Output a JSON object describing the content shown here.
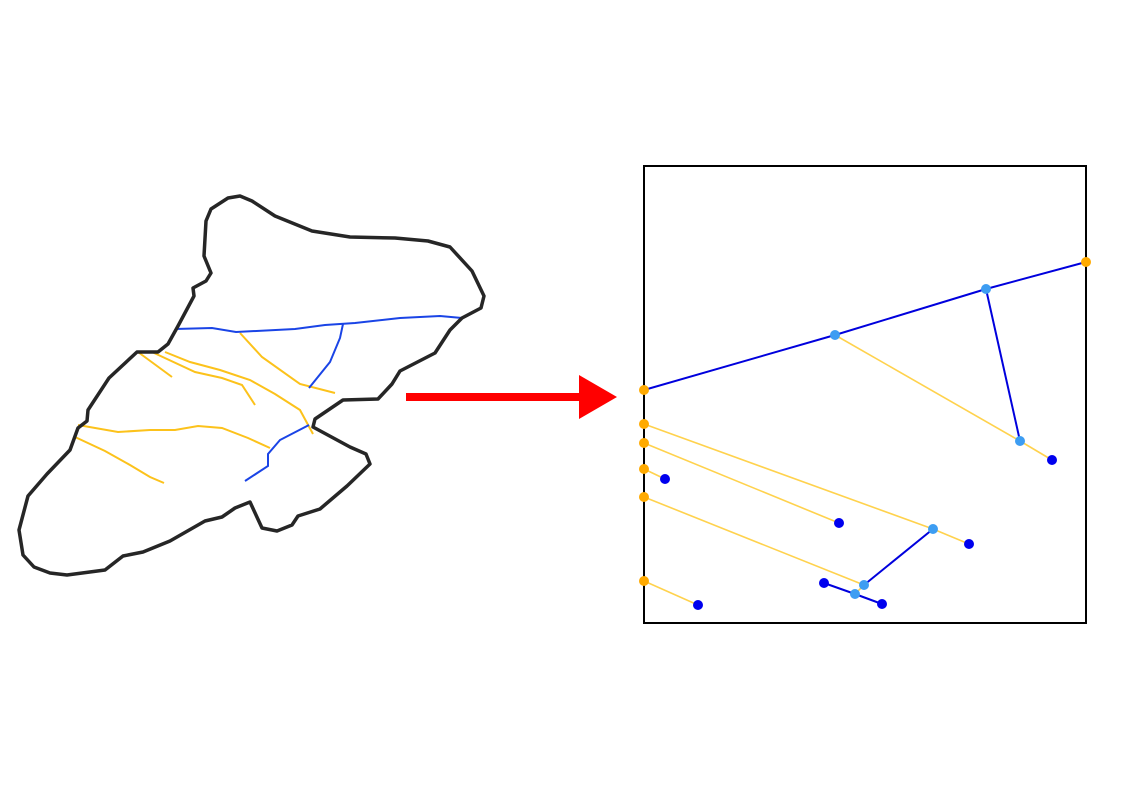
{
  "colors": {
    "background": "#ffffff",
    "watershed_outline": "#262626",
    "main_channel": "#1a44e6",
    "tributary": "#fcc21b",
    "arrow": "#ff0000",
    "graph_frame": "#000000",
    "graph_main_edge": "#0000dd",
    "graph_tributary_edge": "#ffd24d",
    "node_outlet": "#ffaa00",
    "node_junction": "#3d9df2",
    "node_source": "#0000ee"
  },
  "watershed": {
    "outline_icon": "watershed-boundary",
    "main_channel_icon": "main-river-channel",
    "tributary_icon": "tributary-stream"
  },
  "arrow": {
    "icon": "right-arrow"
  },
  "graph": {
    "icon": "stream-network-graph"
  }
}
